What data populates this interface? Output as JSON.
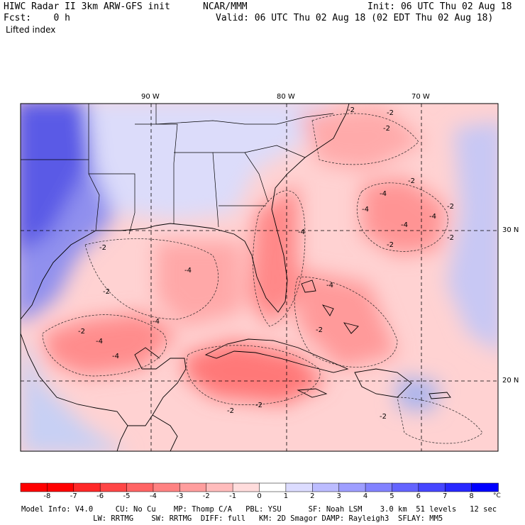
{
  "header": {
    "title": "HIWC Radar II 3km ARW-GFS init",
    "org": "NCAR/MMM",
    "init": "Init: 06 UTC Thu 02 Aug 18",
    "fcst": "Fcst:    0 h",
    "valid": "Valid: 06 UTC Thu 02 Aug 18 (02 EDT Thu 02 Aug 18)",
    "field": "Lifted index"
  },
  "map": {
    "lon_labels": [
      "90 W",
      "80 W",
      "70 W"
    ],
    "lat_labels": [
      "30 N",
      "20 N"
    ],
    "contour_labels": [
      "-2",
      "-2",
      "-2",
      "-2",
      "-4",
      "-4",
      "-2",
      "-4",
      "-4",
      "-2",
      "-2",
      "-4",
      "-2",
      "-4",
      "-2",
      "-4",
      "-4",
      "-4",
      "-2",
      "-2",
      "-4",
      "-2",
      "-2",
      "-2"
    ]
  },
  "colorbar": {
    "ticks": [
      "-8",
      "-7",
      "-6",
      "-5",
      "-4",
      "-3",
      "-2",
      "-1",
      "0",
      "1",
      "2",
      "3",
      "4",
      "5",
      "6",
      "7",
      "8"
    ],
    "unit": "°C",
    "colors": [
      "#ff0000",
      "#ff2828",
      "#ff4646",
      "#ff6464",
      "#ff8282",
      "#ff9e9e",
      "#ffbcbc",
      "#ffdcdc",
      "#ffffff",
      "#dcdcff",
      "#bcbcff",
      "#9e9eff",
      "#8282ff",
      "#6464ff",
      "#4646ff",
      "#2828ff",
      "#0000ff"
    ]
  },
  "footer": {
    "line1": "Model Info: V4.0     CU: No Cu    MP: Thomp C/A   PBL: YSU      SF: Noah LSM    3.0 km  51 levels   12 sec",
    "line2": "                LW: RRTMG    SW: RRTMG  DIFF: full   KM: 2D Smagor DAMP: Rayleigh3  SFLAY: MM5"
  }
}
